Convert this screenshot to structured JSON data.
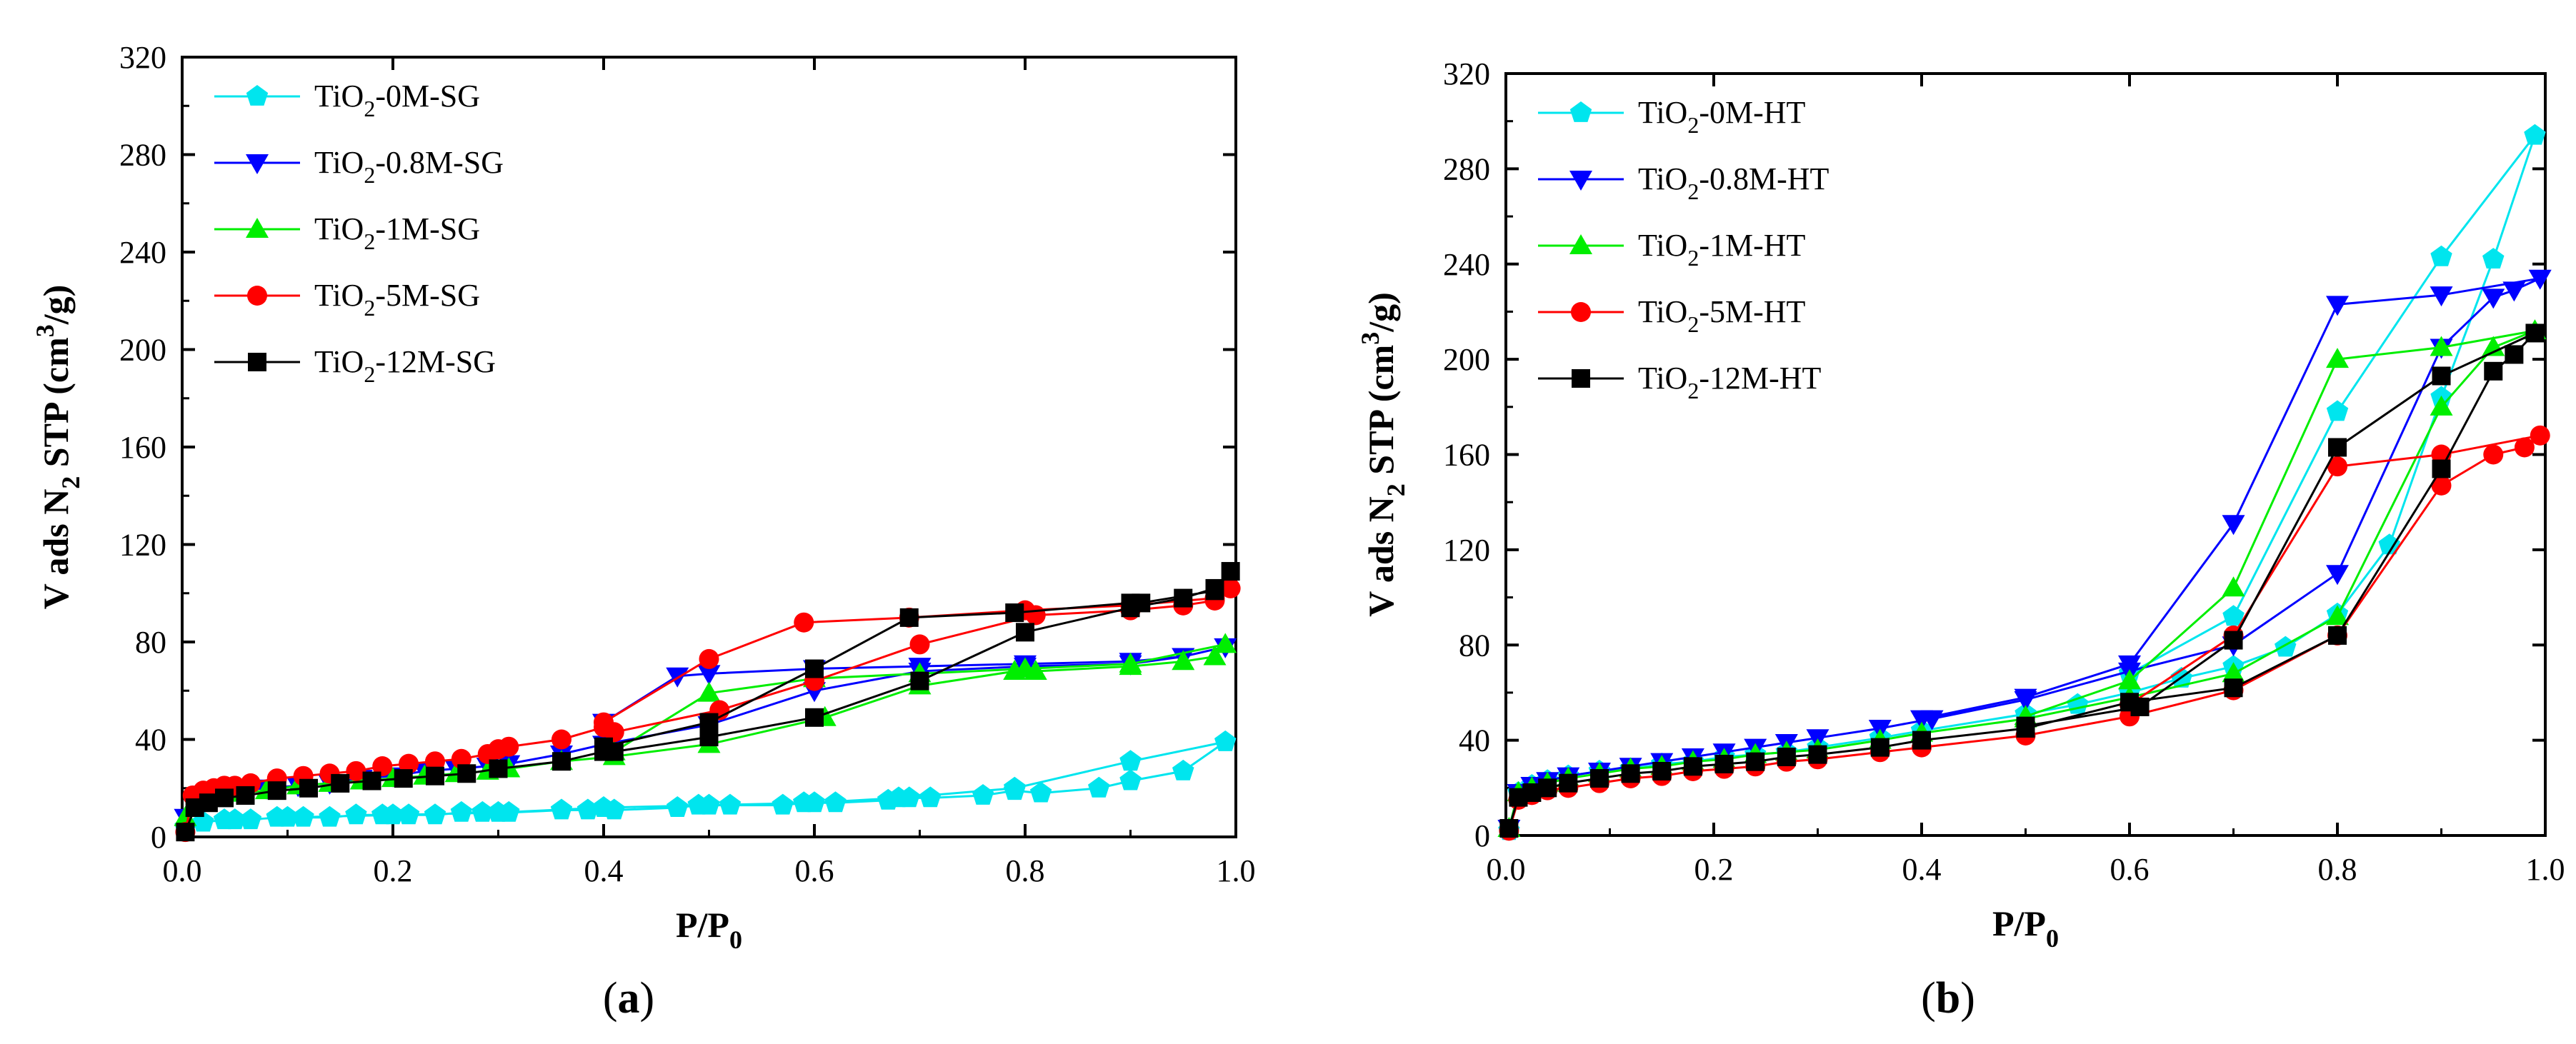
{
  "chart_data": [
    {
      "id": "a",
      "type": "line",
      "panel_label": "(a)",
      "xlabel": "P/P",
      "xlabel_sub": "0",
      "ylabel": "V ads N",
      "ylabel_sub": "2",
      "ylabel_mid": " STP (cm",
      "ylabel_sup": "3",
      "ylabel_tail": "/g)",
      "xlim": [
        0,
        1
      ],
      "ylim": [
        0,
        320
      ],
      "xticks": [
        0.0,
        0.2,
        0.4,
        0.6,
        0.8,
        1.0
      ],
      "xtick_labels": [
        "0.0",
        "0.2",
        "0.4",
        "0.6",
        "0.8",
        "1.0"
      ],
      "yticks": [
        0,
        40,
        80,
        120,
        160,
        200,
        240,
        280,
        320
      ],
      "ytick_labels": [
        "0",
        "40",
        "80",
        "120",
        "160",
        "200",
        "240",
        "280",
        "320"
      ],
      "legend_position": "top-left",
      "series": [
        {
          "name": "TiO2-0M-SG",
          "label_main": "TiO",
          "label_sub": "2",
          "label_rest": "-0M-SG",
          "color": "#00e5ee",
          "marker": "pentagon",
          "x": [
            0.003,
            0.02,
            0.04,
            0.065,
            0.09,
            0.115,
            0.14,
            0.165,
            0.19,
            0.215,
            0.24,
            0.265,
            0.285,
            0.31,
            0.36,
            0.385,
            0.41,
            0.47,
            0.49,
            0.52,
            0.57,
            0.59,
            0.62,
            0.67,
            0.69,
            0.71,
            0.76,
            0.79,
            0.815,
            0.87,
            0.9,
            0.95,
            0.99,
            0.9,
            0.79,
            0.68,
            0.6,
            0.5,
            0.4,
            0.3,
            0.2,
            0.1,
            0.05
          ],
          "y": [
            4,
            6,
            7,
            7,
            8,
            8,
            8,
            9,
            9,
            9,
            9,
            10,
            10,
            10,
            11,
            11,
            11,
            12,
            13,
            13,
            13,
            14,
            14,
            15,
            16,
            16,
            17,
            19,
            18,
            20,
            23,
            27,
            39,
            31,
            20,
            16,
            14,
            13,
            12,
            10,
            9,
            8,
            7
          ]
        },
        {
          "name": "TiO2-0.8M-SG",
          "label_main": "TiO",
          "label_sub": "2",
          "label_rest": "-0.8M-SG",
          "color": "#0000ff",
          "marker": "triangle-down",
          "x": [
            0.003,
            0.015,
            0.03,
            0.05,
            0.08,
            0.11,
            0.14,
            0.17,
            0.2,
            0.23,
            0.26,
            0.29,
            0.31,
            0.36,
            0.4,
            0.5,
            0.6,
            0.7,
            0.8,
            0.9,
            0.95,
            0.99,
            0.95,
            0.9,
            0.8,
            0.7,
            0.6,
            0.5,
            0.47,
            0.4
          ],
          "y": [
            8,
            15,
            17,
            19,
            20,
            21,
            22,
            24,
            25,
            27,
            28,
            29,
            30,
            34,
            38,
            46,
            60,
            68,
            70,
            71,
            74,
            78,
            74,
            72,
            71,
            70,
            69,
            67,
            66,
            47
          ]
        },
        {
          "name": "TiO2-1M-SG",
          "label_main": "TiO",
          "label_sub": "2",
          "label_rest": "-1M-SG",
          "color": "#00ee00",
          "marker": "triangle-up",
          "x": [
            0.003,
            0.015,
            0.03,
            0.05,
            0.08,
            0.11,
            0.14,
            0.17,
            0.2,
            0.23,
            0.26,
            0.29,
            0.31,
            0.36,
            0.41,
            0.5,
            0.61,
            0.7,
            0.79,
            0.81,
            0.9,
            0.95,
            0.98,
            0.99,
            0.9,
            0.8,
            0.7,
            0.6,
            0.5,
            0.41
          ],
          "y": [
            8,
            14,
            16,
            18,
            19,
            21,
            22,
            23,
            24,
            25,
            26,
            27,
            28,
            31,
            33,
            38,
            49,
            62,
            68,
            68,
            70,
            72,
            74,
            79,
            71,
            69,
            67,
            65,
            59,
            35
          ]
        },
        {
          "name": "TiO2-5M-SG",
          "label_main": "TiO",
          "label_sub": "2",
          "label_rest": "-5M-SG",
          "color": "#ff0000",
          "marker": "circle",
          "x": [
            0.003,
            0.01,
            0.02,
            0.03,
            0.04,
            0.05,
            0.065,
            0.09,
            0.115,
            0.14,
            0.165,
            0.19,
            0.215,
            0.24,
            0.265,
            0.29,
            0.3,
            0.31,
            0.36,
            0.4,
            0.41,
            0.51,
            0.6,
            0.7,
            0.81,
            0.9,
            0.95,
            0.98,
            0.995,
            0.98,
            0.9,
            0.8,
            0.69,
            0.59,
            0.5,
            0.4
          ],
          "y": [
            2,
            17,
            19,
            20,
            21,
            21,
            22,
            24,
            25,
            26,
            27,
            29,
            30,
            31,
            32,
            34,
            36,
            37,
            40,
            45,
            43,
            52,
            64,
            79,
            91,
            93,
            95,
            97,
            102,
            98,
            95,
            93,
            90,
            88,
            73,
            47
          ]
        },
        {
          "name": "TiO2-12M-SG",
          "label_main": "TiO",
          "label_sub": "2",
          "label_rest": "-12M-SG",
          "color": "#000000",
          "marker": "square",
          "x": [
            0.003,
            0.012,
            0.025,
            0.04,
            0.06,
            0.09,
            0.12,
            0.15,
            0.18,
            0.21,
            0.24,
            0.27,
            0.3,
            0.36,
            0.4,
            0.41,
            0.5,
            0.6,
            0.7,
            0.8,
            0.9,
            0.95,
            0.98,
            0.995,
            0.98,
            0.91,
            0.9,
            0.79,
            0.69,
            0.6,
            0.5,
            0.4
          ],
          "y": [
            2,
            12,
            14,
            16,
            17,
            19,
            20,
            22,
            23,
            24,
            25,
            26,
            28,
            31,
            35,
            35,
            41,
            49,
            64,
            84,
            94,
            98,
            102,
            109,
            101,
            96,
            96,
            92,
            90,
            69,
            47,
            37
          ]
        }
      ]
    },
    {
      "id": "b",
      "type": "line",
      "panel_label": "(b)",
      "xlabel": "P/P",
      "xlabel_sub": "0",
      "ylabel": "V ads N",
      "ylabel_sub": "2",
      "ylabel_mid": " STP (cm",
      "ylabel_sup": "3",
      "ylabel_tail": "/g)",
      "xlim": [
        0,
        1
      ],
      "ylim": [
        0,
        320
      ],
      "xticks": [
        0.0,
        0.2,
        0.4,
        0.6,
        0.8,
        1.0
      ],
      "xtick_labels": [
        "0.0",
        "0.2",
        "0.4",
        "0.6",
        "0.8",
        "1.0"
      ],
      "yticks": [
        0,
        40,
        80,
        120,
        160,
        200,
        240,
        280,
        320
      ],
      "ytick_labels": [
        "0",
        "40",
        "80",
        "120",
        "160",
        "200",
        "240",
        "280",
        "320"
      ],
      "legend_position": "top-left",
      "series": [
        {
          "name": "TiO2-0M-HT",
          "label_main": "TiO",
          "label_sub": "2",
          "label_rest": "-0M-HT",
          "color": "#00e5ee",
          "marker": "pentagon",
          "x": [
            0.003,
            0.012,
            0.025,
            0.04,
            0.06,
            0.09,
            0.12,
            0.15,
            0.18,
            0.21,
            0.24,
            0.27,
            0.3,
            0.36,
            0.4,
            0.5,
            0.55,
            0.6,
            0.65,
            0.7,
            0.75,
            0.8,
            0.85,
            0.9,
            0.95,
            0.99,
            0.9,
            0.8,
            0.7,
            0.6
          ],
          "y": [
            2,
            18,
            21,
            23,
            25,
            27,
            28,
            30,
            31,
            33,
            34,
            35,
            37,
            41,
            44,
            51,
            55,
            60,
            66,
            71,
            79,
            93,
            122,
            184,
            242,
            294,
            243,
            178,
            92,
            68
          ]
        },
        {
          "name": "TiO2-0.8M-HT",
          "label_main": "TiO",
          "label_sub": "2",
          "label_rest": "-0.8M-HT",
          "color": "#0000ff",
          "marker": "triangle-down",
          "x": [
            0.003,
            0.012,
            0.025,
            0.04,
            0.06,
            0.09,
            0.12,
            0.15,
            0.18,
            0.21,
            0.24,
            0.27,
            0.3,
            0.36,
            0.41,
            0.5,
            0.6,
            0.7,
            0.8,
            0.9,
            0.95,
            0.97,
            0.995,
            0.9,
            0.8,
            0.7,
            0.6,
            0.5,
            0.4
          ],
          "y": [
            3,
            18,
            21,
            23,
            25,
            27,
            29,
            31,
            33,
            35,
            37,
            39,
            41,
            45,
            49,
            57,
            69,
            80,
            110,
            205,
            226,
            229,
            234,
            227,
            223,
            131,
            72,
            58,
            49
          ]
        },
        {
          "name": "TiO2-1M-HT",
          "label_main": "TiO",
          "label_sub": "2",
          "label_rest": "-1M-HT",
          "color": "#00ee00",
          "marker": "triangle-up",
          "x": [
            0.003,
            0.012,
            0.025,
            0.04,
            0.06,
            0.09,
            0.12,
            0.15,
            0.18,
            0.21,
            0.24,
            0.27,
            0.3,
            0.36,
            0.4,
            0.5,
            0.6,
            0.7,
            0.8,
            0.9,
            0.95,
            0.99,
            0.9,
            0.8,
            0.7,
            0.6,
            0.5
          ],
          "y": [
            3,
            18,
            20,
            22,
            24,
            26,
            28,
            29,
            31,
            32,
            34,
            35,
            36,
            40,
            43,
            49,
            58,
            68,
            92,
            180,
            205,
            212,
            205,
            200,
            104,
            65,
            50
          ]
        },
        {
          "name": "TiO2-5M-HT",
          "label_main": "TiO",
          "label_sub": "2",
          "label_rest": "-5M-HT",
          "color": "#ff0000",
          "marker": "circle",
          "x": [
            0.003,
            0.012,
            0.025,
            0.04,
            0.06,
            0.09,
            0.12,
            0.15,
            0.18,
            0.21,
            0.24,
            0.27,
            0.3,
            0.36,
            0.4,
            0.5,
            0.6,
            0.7,
            0.8,
            0.9,
            0.95,
            0.98,
            0.995,
            0.9,
            0.8,
            0.7,
            0.6
          ],
          "y": [
            2,
            15,
            17,
            19,
            20,
            22,
            24,
            25,
            27,
            28,
            29,
            31,
            32,
            35,
            37,
            42,
            50,
            61,
            84,
            147,
            160,
            163,
            168,
            160,
            155,
            84,
            55
          ]
        },
        {
          "name": "TiO2-12M-HT",
          "label_main": "TiO",
          "label_sub": "2",
          "label_rest": "-12M-HT",
          "color": "#000000",
          "marker": "square",
          "x": [
            0.003,
            0.012,
            0.025,
            0.04,
            0.06,
            0.09,
            0.12,
            0.15,
            0.18,
            0.21,
            0.24,
            0.27,
            0.3,
            0.36,
            0.4,
            0.5,
            0.6,
            0.7,
            0.8,
            0.9,
            0.95,
            0.97,
            0.99,
            0.9,
            0.8,
            0.7,
            0.61,
            0.5
          ],
          "y": [
            3,
            16,
            18,
            20,
            22,
            24,
            26,
            27,
            29,
            30,
            31,
            33,
            34,
            37,
            40,
            45,
            56,
            62,
            84,
            154,
            195,
            202,
            211,
            193,
            163,
            82,
            54,
            46
          ]
        }
      ]
    }
  ]
}
